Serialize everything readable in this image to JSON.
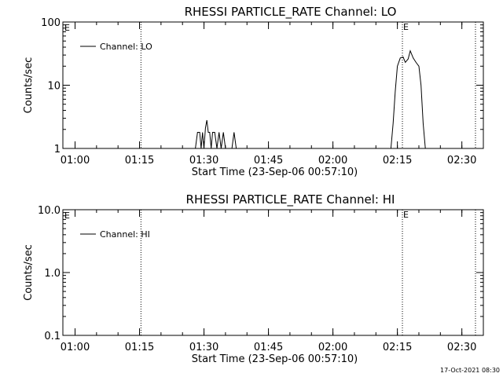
{
  "timestamp": "17-Oct-2021 08:30",
  "chart_data": [
    {
      "type": "line",
      "title": "RHESSI PARTICLE_RATE Channel: LO",
      "xlabel": "Start Time (23-Sep-06 00:57:10)",
      "ylabel": "Counts/sec",
      "yscale": "log",
      "ylim": [
        1,
        100
      ],
      "xlim": [
        "00:57:10",
        "02:35:00"
      ],
      "y_ticks": [
        "1",
        "10",
        "100"
      ],
      "x_ticks": [
        "01:00",
        "01:15",
        "01:30",
        "01:45",
        "02:00",
        "02:15",
        "02:30"
      ],
      "legend": "top-left",
      "series": [
        {
          "name": "Channel: LO",
          "points": [
            [
              "01:28:00",
              1
            ],
            [
              "01:28:30",
              1.8
            ],
            [
              "01:29:00",
              1.8
            ],
            [
              "01:29:20",
              1
            ],
            [
              "01:29:40",
              1.8
            ],
            [
              "01:30:00",
              1
            ],
            [
              "01:30:20",
              2.1
            ],
            [
              "01:30:40",
              2.8
            ],
            [
              "01:31:00",
              1.8
            ],
            [
              "01:31:20",
              1.8
            ],
            [
              "01:31:40",
              1
            ],
            [
              "01:32:00",
              1.8
            ],
            [
              "01:32:30",
              1.8
            ],
            [
              "01:33:00",
              1
            ],
            [
              "01:33:30",
              1.8
            ],
            [
              "01:34:00",
              1
            ],
            [
              "01:34:30",
              1.8
            ],
            [
              "01:35:00",
              1
            ],
            [
              "01:36:30",
              1
            ],
            [
              "01:37:00",
              1.8
            ],
            [
              "01:37:30",
              1
            ]
          ]
        },
        {
          "name": "",
          "points": [
            [
              "02:13:30",
              1
            ],
            [
              "02:14:00",
              2.5
            ],
            [
              "02:14:30",
              8
            ],
            [
              "02:15:00",
              20
            ],
            [
              "02:15:40",
              27
            ],
            [
              "02:16:20",
              28
            ],
            [
              "02:16:50",
              23
            ],
            [
              "02:17:30",
              26
            ],
            [
              "02:18:00",
              35
            ],
            [
              "02:18:40",
              27
            ],
            [
              "02:19:20",
              23
            ],
            [
              "02:20:00",
              20
            ],
            [
              "02:20:30",
              10
            ],
            [
              "02:21:00",
              2.5
            ],
            [
              "02:21:30",
              1
            ]
          ]
        }
      ],
      "events": [
        {
          "time": "01:15:20",
          "label": ""
        },
        {
          "time": "02:16:10",
          "label": "E"
        },
        {
          "time": "02:33:10",
          "label": ""
        }
      ],
      "corner_label": "E"
    },
    {
      "type": "line",
      "title": "RHESSI PARTICLE_RATE Channel: HI",
      "xlabel": "Start Time (23-Sep-06 00:57:10)",
      "ylabel": "Counts/sec",
      "yscale": "log",
      "ylim": [
        0.1,
        10
      ],
      "xlim": [
        "00:57:10",
        "02:35:00"
      ],
      "y_ticks": [
        "0.1",
        "1.0",
        "10.0"
      ],
      "x_ticks": [
        "01:00",
        "01:15",
        "01:30",
        "01:45",
        "02:00",
        "02:15",
        "02:30"
      ],
      "legend": "top-left",
      "series": [
        {
          "name": "Channel: HI",
          "points": []
        }
      ],
      "events": [
        {
          "time": "01:15:20",
          "label": ""
        },
        {
          "time": "02:16:10",
          "label": "E"
        },
        {
          "time": "02:33:10",
          "label": ""
        }
      ],
      "corner_label": "E"
    }
  ]
}
